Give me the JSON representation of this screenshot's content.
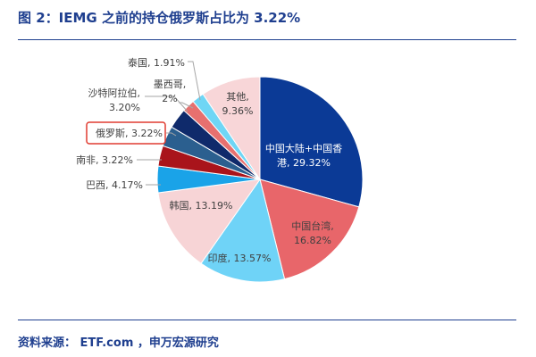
{
  "figure": {
    "title": "图 2：IEMG 之前的持仓俄罗斯占比为 3.22%",
    "source": "资料来源： ETF.com ，申万宏源研究"
  },
  "chart_data": {
    "type": "pie",
    "unit": "%",
    "start_angle_deg": 0,
    "direction": "clockwise",
    "highlighted": "俄罗斯",
    "slices": [
      {
        "name": "中国大陆+中国香港",
        "value": 29.32,
        "label": "中国大陆+中国香港, 29.32%",
        "color": "#0b3a96"
      },
      {
        "name": "中国台湾",
        "value": 16.82,
        "label": "中国台湾, 16.82%",
        "color": "#e8666a"
      },
      {
        "name": "印度",
        "value": 13.57,
        "label": "印度, 13.57%",
        "color": "#6fd3f7"
      },
      {
        "name": "韩国",
        "value": 13.19,
        "label": "韩国, 13.19%",
        "color": "#f7d4d6"
      },
      {
        "name": "巴西",
        "value": 4.17,
        "label": "巴西, 4.17%",
        "color": "#1aa3e8"
      },
      {
        "name": "南非",
        "value": 3.22,
        "label": "南非, 3.22%",
        "color": "#a9141b"
      },
      {
        "name": "俄罗斯",
        "value": 3.22,
        "label": "俄罗斯, 3.22%",
        "color": "#2b5f8f"
      },
      {
        "name": "沙特阿拉伯",
        "value": 3.2,
        "label": "沙特阿拉伯, 3.20%",
        "color": "#0f2a6b"
      },
      {
        "name": "墨西哥",
        "value": 2,
        "label": "墨西哥, 2%",
        "color": "#e7706f"
      },
      {
        "name": "泰国",
        "value": 1.91,
        "label": "泰国, 1.91%",
        "color": "#6fd6f5"
      },
      {
        "name": "其他",
        "value": 9.36,
        "label": "其他, 9.36%",
        "color": "#f8d6d8"
      }
    ]
  }
}
